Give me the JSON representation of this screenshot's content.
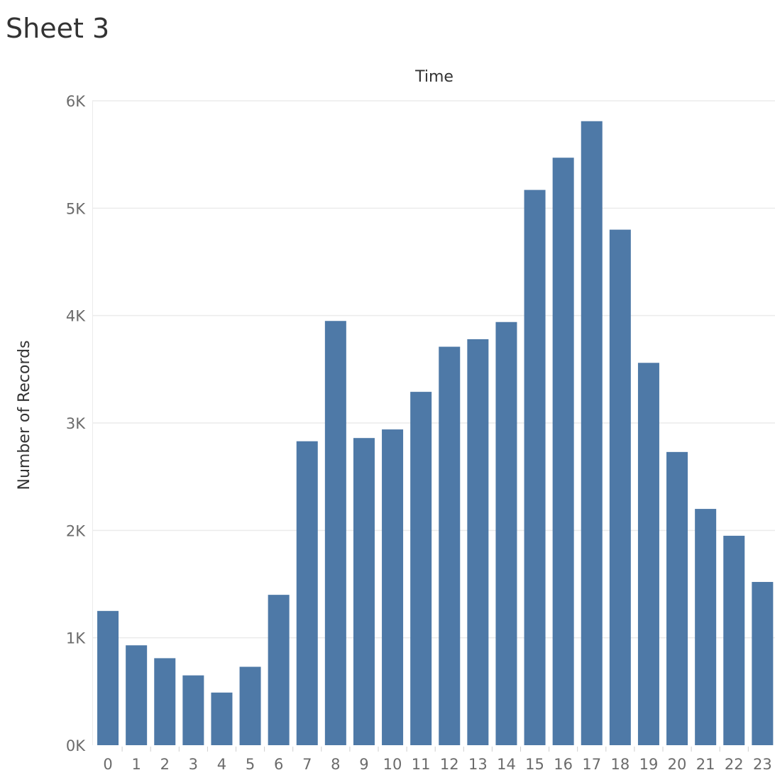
{
  "sheet": {
    "title": "Sheet 3"
  },
  "colors": {
    "bar": "#4e79a7",
    "grid": "#ebebeb",
    "axis_text": "#6b6b6b",
    "label_text": "#333333"
  },
  "chart_data": {
    "type": "bar",
    "title": "Time",
    "xlabel": "",
    "ylabel": "Number of Records",
    "categories": [
      "0",
      "1",
      "2",
      "3",
      "4",
      "5",
      "6",
      "7",
      "8",
      "9",
      "10",
      "11",
      "12",
      "13",
      "14",
      "15",
      "16",
      "17",
      "18",
      "19",
      "20",
      "21",
      "22",
      "23"
    ],
    "values": [
      1250,
      930,
      810,
      650,
      490,
      730,
      1400,
      2830,
      3950,
      2860,
      2940,
      3290,
      3710,
      3780,
      3940,
      5170,
      5470,
      5810,
      4800,
      3560,
      2730,
      2200,
      1950,
      1520
    ],
    "ylim": [
      0,
      6000
    ],
    "yticks": [
      0,
      1000,
      2000,
      3000,
      4000,
      5000,
      6000
    ],
    "ytick_labels": [
      "0K",
      "1K",
      "2K",
      "3K",
      "4K",
      "5K",
      "6K"
    ],
    "grid": true,
    "legend": "none"
  }
}
